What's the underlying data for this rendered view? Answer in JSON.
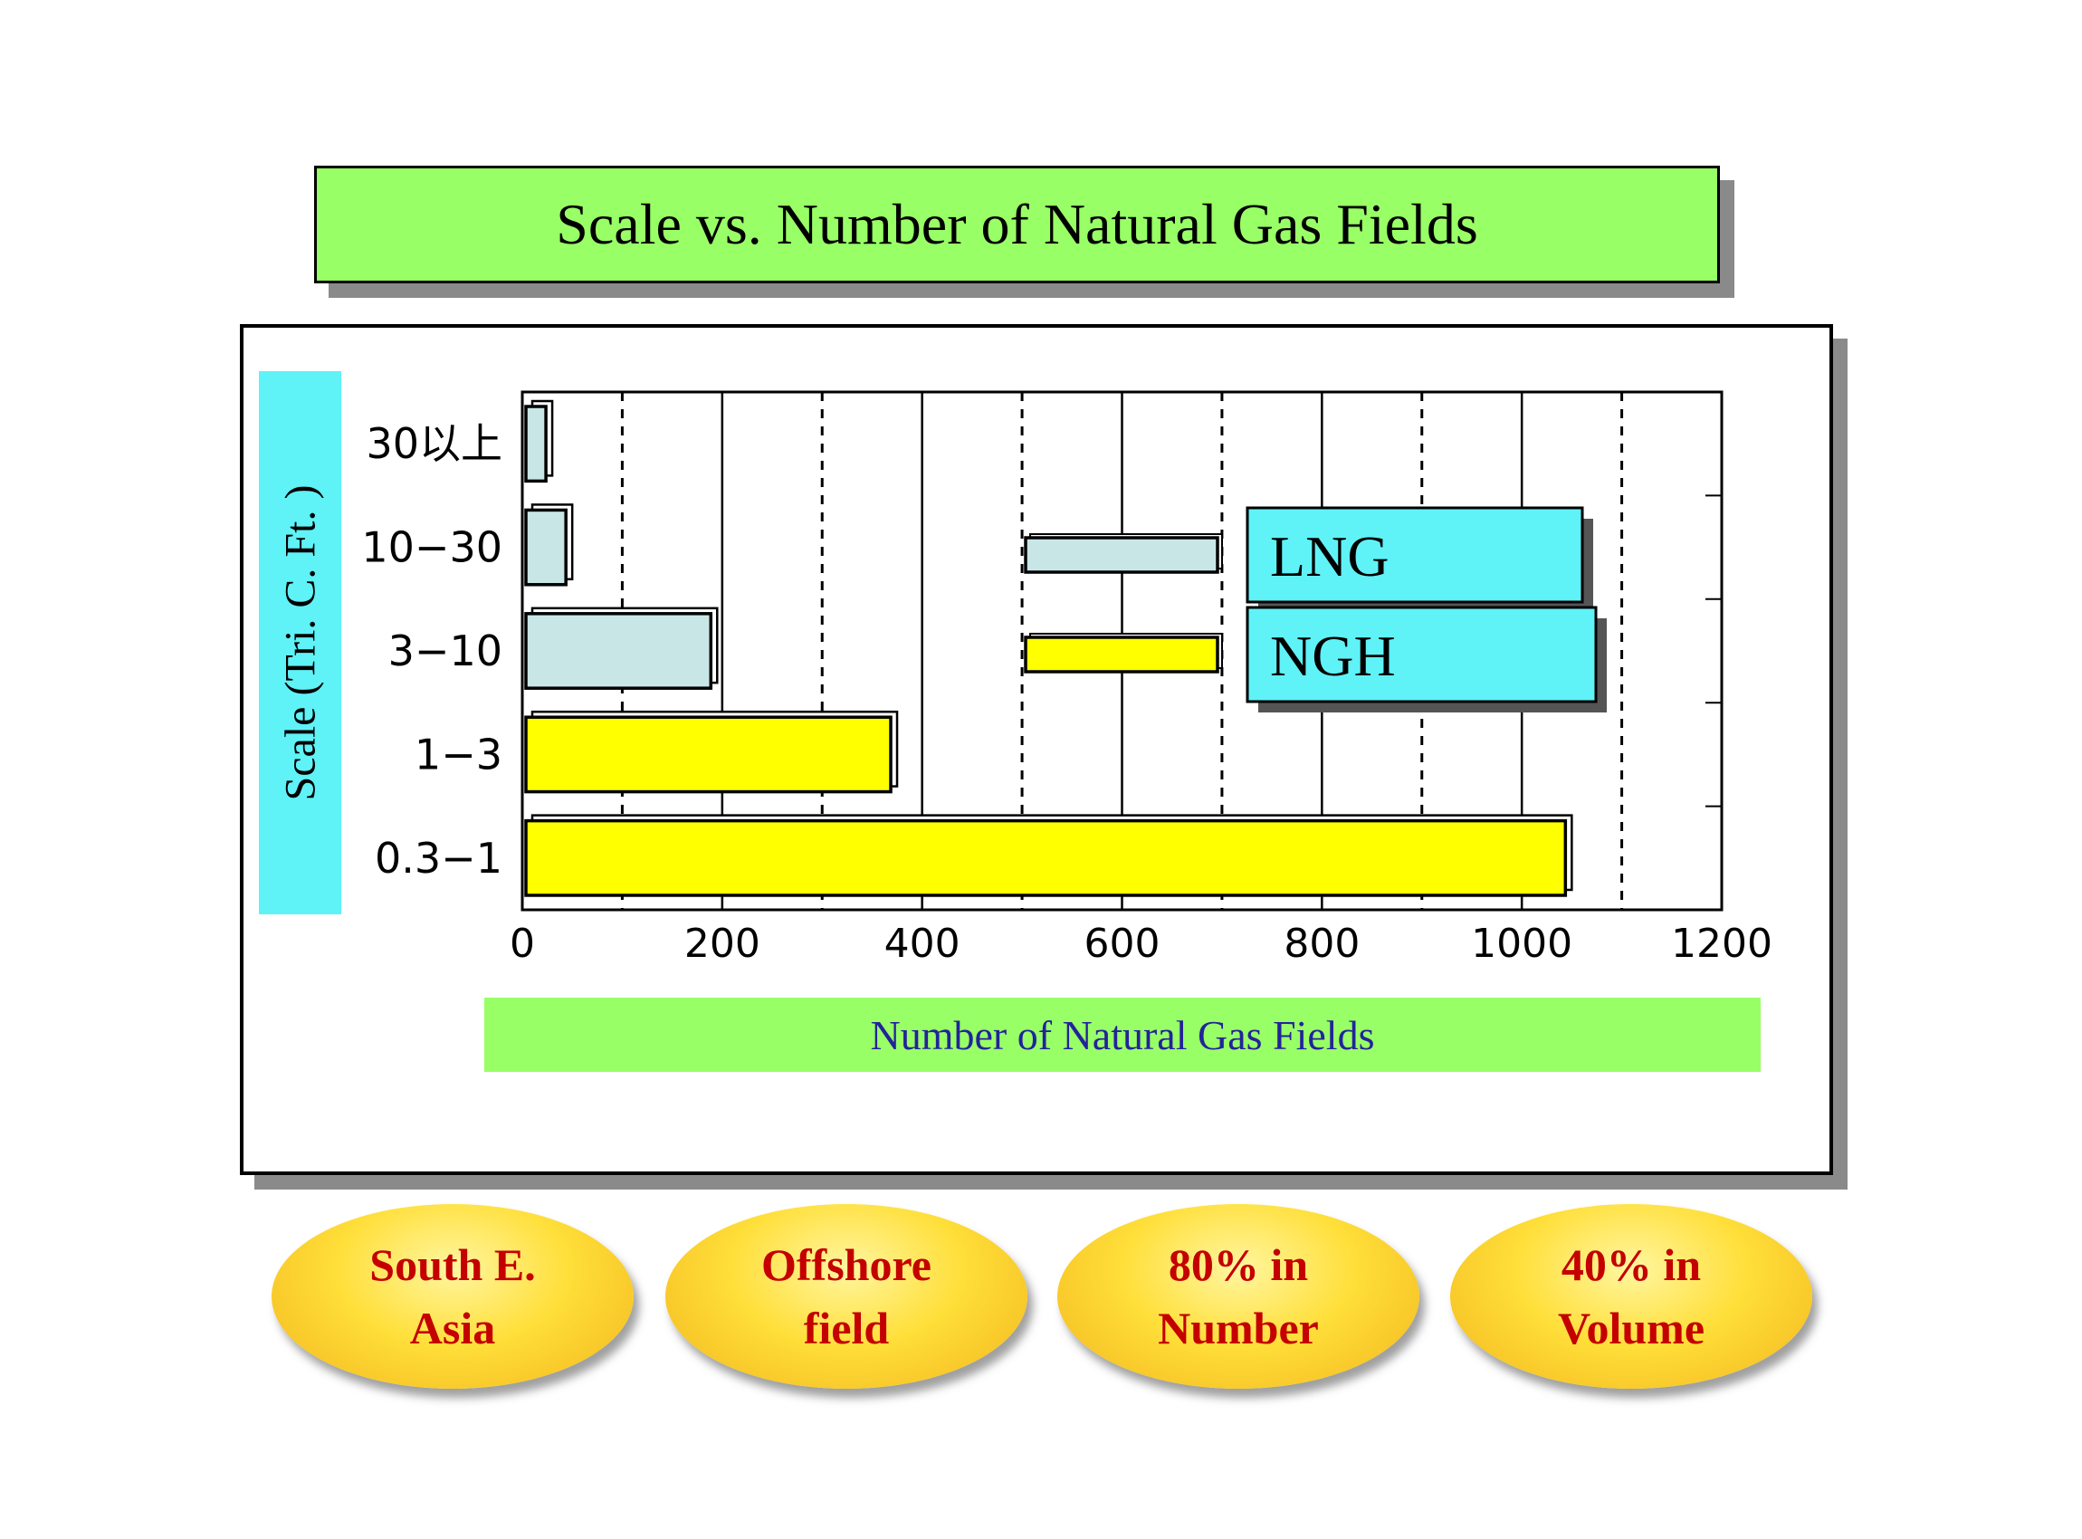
{
  "chart_data": {
    "type": "bar",
    "orientation": "horizontal",
    "title": "Scale vs. Number of Natural Gas Fields",
    "xlabel": "Number of Natural Gas Fields",
    "ylabel": "Scale (Tri. C. Ft. )",
    "xlim": [
      0,
      1200
    ],
    "x_ticks": [
      "0",
      "200",
      "400",
      "600",
      "800",
      "1000",
      "1200"
    ],
    "categories": [
      "30以上",
      "10−30",
      "3−10",
      "1−3",
      "0.3−1"
    ],
    "values": [
      20,
      40,
      185,
      365,
      1040
    ],
    "bar_series": [
      "LNG",
      "LNG",
      "LNG",
      "NGH",
      "NGH"
    ],
    "grid": true,
    "legend_position": "center-right",
    "legend": [
      {
        "name": "LNG",
        "color": "#c8e6e6"
      },
      {
        "name": "NGH",
        "color": "#ffff00"
      }
    ]
  },
  "callouts": [
    "South E.\nAsia",
    "Offshore\nfield",
    "80% in\nNumber",
    "40% in\nVolume"
  ],
  "colors": {
    "title_bg": "#99ff66",
    "axis_label_bg_y": "#5ff2f7",
    "axis_label_bg_x": "#99ff66",
    "legend_label_bg": "#5ff2f7",
    "lng": "#c8e6e6",
    "ngh": "#ffff00",
    "callout_text": "#c40000"
  }
}
